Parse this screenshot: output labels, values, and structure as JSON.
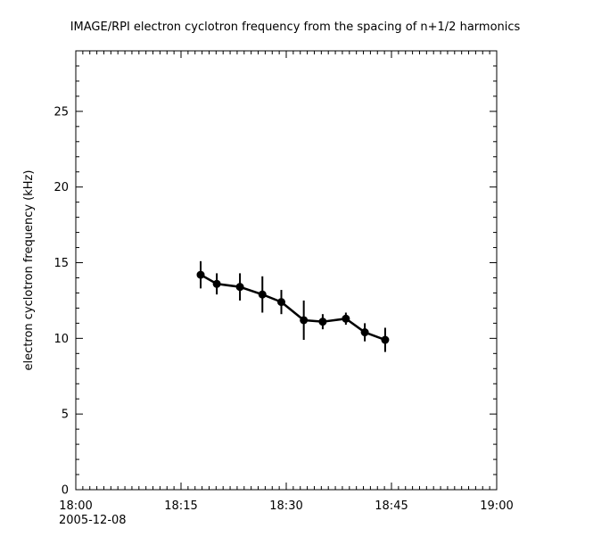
{
  "chart_data": {
    "type": "line",
    "title": "IMAGE/RPI  electron cyclotron frequency from the spacing of n+1/2 harmonics",
    "xlabel": "",
    "ylabel": "electron cyclotron frequency (kHz)",
    "date_label": "2005-12-08",
    "line_color": "#000000",
    "marker": "filled-circle",
    "error_bars": true,
    "grid": false,
    "legend": "none",
    "xlim_minutes_after_1800": [
      0,
      60
    ],
    "x_major_ticks": [
      {
        "minutes": 0,
        "label": "18:00"
      },
      {
        "minutes": 15,
        "label": "18:15"
      },
      {
        "minutes": 30,
        "label": "18:30"
      },
      {
        "minutes": 45,
        "label": "18:45"
      },
      {
        "minutes": 60,
        "label": "19:00"
      }
    ],
    "x_minor_tick_step_minutes": 1,
    "ylim": [
      0,
      29
    ],
    "y_major_ticks": [
      0,
      5,
      10,
      15,
      20,
      25
    ],
    "y_minor_tick_step": 1,
    "series": [
      {
        "name": "electron cyclotron frequency",
        "points": [
          {
            "time": "18:18",
            "minutes": 17.8,
            "value": 14.2,
            "error": 0.9
          },
          {
            "time": "18:20",
            "minutes": 20.1,
            "value": 13.6,
            "error": 0.7
          },
          {
            "time": "18:23",
            "minutes": 23.4,
            "value": 13.4,
            "error": 0.9
          },
          {
            "time": "18:27",
            "minutes": 26.6,
            "value": 12.9,
            "error": 1.2
          },
          {
            "time": "18:29",
            "minutes": 29.3,
            "value": 12.4,
            "error": 0.8
          },
          {
            "time": "18:33",
            "minutes": 32.5,
            "value": 11.2,
            "error": 1.3
          },
          {
            "time": "18:35",
            "minutes": 35.2,
            "value": 11.1,
            "error": 0.5
          },
          {
            "time": "18:39",
            "minutes": 38.5,
            "value": 11.3,
            "error": 0.4
          },
          {
            "time": "18:41",
            "minutes": 41.2,
            "value": 10.4,
            "error": 0.6
          },
          {
            "time": "18:44",
            "minutes": 44.1,
            "value": 9.9,
            "error": 0.8
          }
        ]
      }
    ]
  }
}
